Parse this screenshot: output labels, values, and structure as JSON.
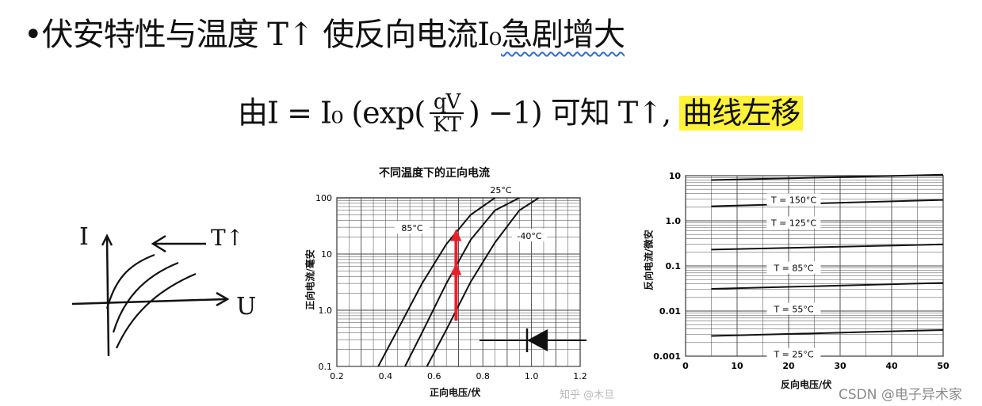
{
  "notes": {
    "line1": "•伏安特性与温度 T↑ 使反向电流I₀",
    "line1_emph": "急剧增大",
    "eq_prefix": "由I = I₀ (exp(",
    "eq_num": "qV",
    "eq_den": "KT",
    "eq_suffix": ") −1) 可知 T↑,",
    "eq_highlight": "曲线左移"
  },
  "sketch": {
    "y_label": "I",
    "x_label": "U",
    "arrow_label": "T↑"
  },
  "forward_chart": {
    "title": "不同温度下的正向电流",
    "ylabel": "正向电流/毫安",
    "xlabel": "正向电压/伏",
    "x_ticks": [
      "0.2",
      "0.4",
      "0.6",
      "0.8",
      "1.0",
      "1.2"
    ],
    "y_ticks": [
      "100",
      "10",
      "1.0",
      "0.1"
    ],
    "legend": [
      "85°C",
      "25°C",
      "-40°C"
    ]
  },
  "reverse_chart": {
    "ylabel": "反向电流/微安",
    "xlabel": "反向电压/伏",
    "x_ticks": [
      "0",
      "10",
      "20",
      "30",
      "40",
      "50"
    ],
    "y_ticks": [
      "10",
      "1.0",
      "0.1",
      "0.01",
      "0.001"
    ],
    "curve_labels": [
      "T = 150°C",
      "T = 125°C",
      "T = 85°C",
      "T = 55°C",
      "T = 25°C"
    ]
  },
  "chart_data": [
    {
      "type": "line",
      "title": "不同温度下的正向电流",
      "xlabel": "正向电压/伏",
      "ylabel": "正向电流/毫安",
      "xlim": [
        0.2,
        1.2
      ],
      "ylim": [
        0.1,
        100
      ],
      "yscale": "log",
      "grid": true,
      "x": [
        0.37,
        0.5,
        0.65,
        0.8,
        0.9
      ],
      "series": [
        {
          "name": "85°C",
          "x": [
            0.37,
            0.45,
            0.55,
            0.65,
            0.75,
            0.85
          ],
          "values": [
            0.1,
            0.45,
            3.0,
            15,
            50,
            100
          ]
        },
        {
          "name": "25°C",
          "x": [
            0.48,
            0.55,
            0.65,
            0.75,
            0.85,
            0.95
          ],
          "values": [
            0.1,
            0.4,
            3.0,
            18,
            60,
            100
          ]
        },
        {
          "name": "-40°C",
          "x": [
            0.57,
            0.65,
            0.75,
            0.85,
            0.95,
            1.03
          ],
          "values": [
            0.1,
            0.45,
            3.2,
            16,
            60,
            100
          ]
        }
      ]
    },
    {
      "type": "line",
      "xlabel": "反向电压/伏",
      "ylabel": "反向电流/微安",
      "xlim": [
        0,
        50
      ],
      "ylim": [
        0.001,
        10
      ],
      "yscale": "log",
      "grid": true,
      "series": [
        {
          "name": "T = 150°C",
          "x": [
            5,
            50
          ],
          "values": [
            8.0,
            10.5
          ]
        },
        {
          "name": "T = 125°C",
          "x": [
            5,
            50
          ],
          "values": [
            2.1,
            2.9
          ]
        },
        {
          "name": "T = 85°C",
          "x": [
            5,
            50
          ],
          "values": [
            0.23,
            0.3
          ]
        },
        {
          "name": "T = 55°C",
          "x": [
            5,
            50
          ],
          "values": [
            0.031,
            0.042
          ]
        },
        {
          "name": "T = 25°C",
          "x": [
            5,
            50
          ],
          "values": [
            0.0028,
            0.0038
          ]
        }
      ]
    }
  ],
  "watermarks": {
    "zhihu": "知乎 @木旦",
    "csdn": "CSDN @电子异术家"
  }
}
